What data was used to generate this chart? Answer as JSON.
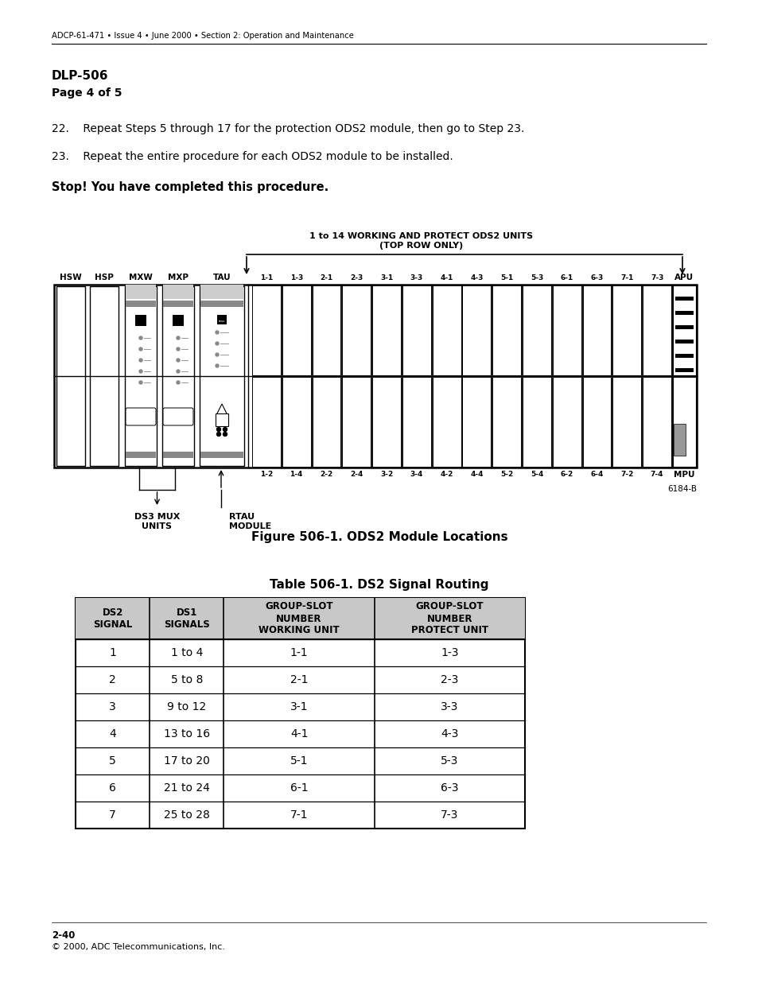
{
  "header_text": "ADCP-61-471 • Issue 4 • June 2000 • Section 2: Operation and Maintenance",
  "title_bold": "DLP-506",
  "title_page": "Page 4 of 5",
  "step22": "22.    Repeat Steps 5 through 17 for the protection ODS2 module, then go to Step 23.",
  "step23": "23.    Repeat the entire procedure for each ODS2 module to be installed.",
  "stop_text": "Stop! You have completed this procedure.",
  "fig_label_top": "1 to 14 WORKING AND PROTECT ODS2 UNITS\n(TOP ROW ONLY)",
  "fig_caption": "Figure 506-1. ODS2 Module Locations",
  "fig_code": "6184-B",
  "ds3_label": "DS3 MUX\nUNITS",
  "rtau_label": "RTAU\nMODULE",
  "top_slot_labels": [
    "1-1",
    "1-3",
    "2-1",
    "2-3",
    "3-1",
    "3-3",
    "4-1",
    "4-3",
    "5-1",
    "5-3",
    "6-1",
    "6-3",
    "7-1",
    "7-3"
  ],
  "bot_slot_labels": [
    "1-2",
    "1-4",
    "2-2",
    "2-4",
    "3-2",
    "3-4",
    "4-2",
    "4-4",
    "5-2",
    "5-4",
    "6-2",
    "6-4",
    "7-2",
    "7-4"
  ],
  "table_title": "Table 506-1. DS2 Signal Routing",
  "table_headers": [
    "DS2\nSIGNAL",
    "DS1\nSIGNALS",
    "GROUP-SLOT\nNUMBER\nWORKING UNIT",
    "GROUP-SLOT\nNUMBER\nPROTECT UNIT"
  ],
  "table_data": [
    [
      "1",
      "1 to 4",
      "1-1",
      "1-3"
    ],
    [
      "2",
      "5 to 8",
      "2-1",
      "2-3"
    ],
    [
      "3",
      "9 to 12",
      "3-1",
      "3-3"
    ],
    [
      "4",
      "13 to 16",
      "4-1",
      "4-3"
    ],
    [
      "5",
      "17 to 20",
      "5-1",
      "5-3"
    ],
    [
      "6",
      "21 to 24",
      "6-1",
      "6-3"
    ],
    [
      "7",
      "25 to 28",
      "7-1",
      "7-3"
    ]
  ],
  "footer_line1": "2-40",
  "footer_line2": "© 2000, ADC Telecommunications, Inc."
}
